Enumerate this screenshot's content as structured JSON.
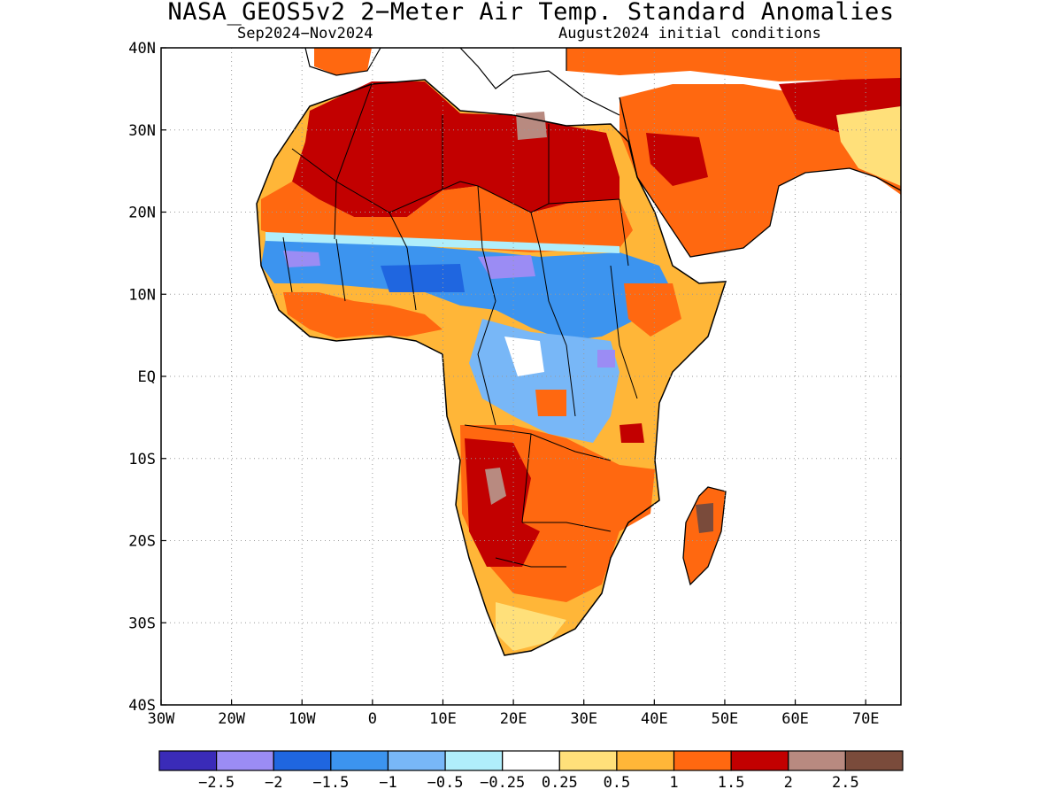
{
  "title": "NASA_GEOS5v2 2−Meter Air Temp. Standard Anomalies",
  "subtitle_left": "Sep2024−Nov2024",
  "subtitle_right": "August2024 initial conditions",
  "lon_labels": [
    "30W",
    "20W",
    "10W",
    "0",
    "10E",
    "20E",
    "30E",
    "40E",
    "50E",
    "60E",
    "70E"
  ],
  "lat_labels": [
    "40N",
    "30N",
    "20N",
    "10N",
    "EQ",
    "10S",
    "20S",
    "30S",
    "40S"
  ],
  "extent": {
    "lon_min": -30,
    "lon_max": 75,
    "lat_min": -40,
    "lat_max": 40
  },
  "colorbar": {
    "colors": [
      "#3a2bb8",
      "#9b8cf4",
      "#1f66e0",
      "#3c94ef",
      "#78b7f7",
      "#b0eefb",
      "#ffffff",
      "#ffe07a",
      "#ffb638",
      "#ff6810",
      "#c20000",
      "#b88a80",
      "#7a4b3b"
    ],
    "labels": [
      "−2.5",
      "−2",
      "−1.5",
      "−1",
      "−0.5",
      "−0.25",
      "0.25",
      "0.5",
      "1",
      "1.5",
      "2",
      "2.5"
    ]
  },
  "anomaly_regions": [
    {
      "name": "sahara-strong-warm",
      "color": "#c20000"
    },
    {
      "name": "sahel-warm",
      "color": "#ff6810"
    },
    {
      "name": "sahel-cool-band",
      "color": "#3c94ef"
    },
    {
      "name": "central-africa-cool",
      "color": "#78b7f7"
    },
    {
      "name": "southern-africa-warm",
      "color": "#c20000"
    },
    {
      "name": "arabia-warm",
      "color": "#ff6810"
    },
    {
      "name": "madagascar-warm",
      "color": "#ff6810"
    }
  ]
}
